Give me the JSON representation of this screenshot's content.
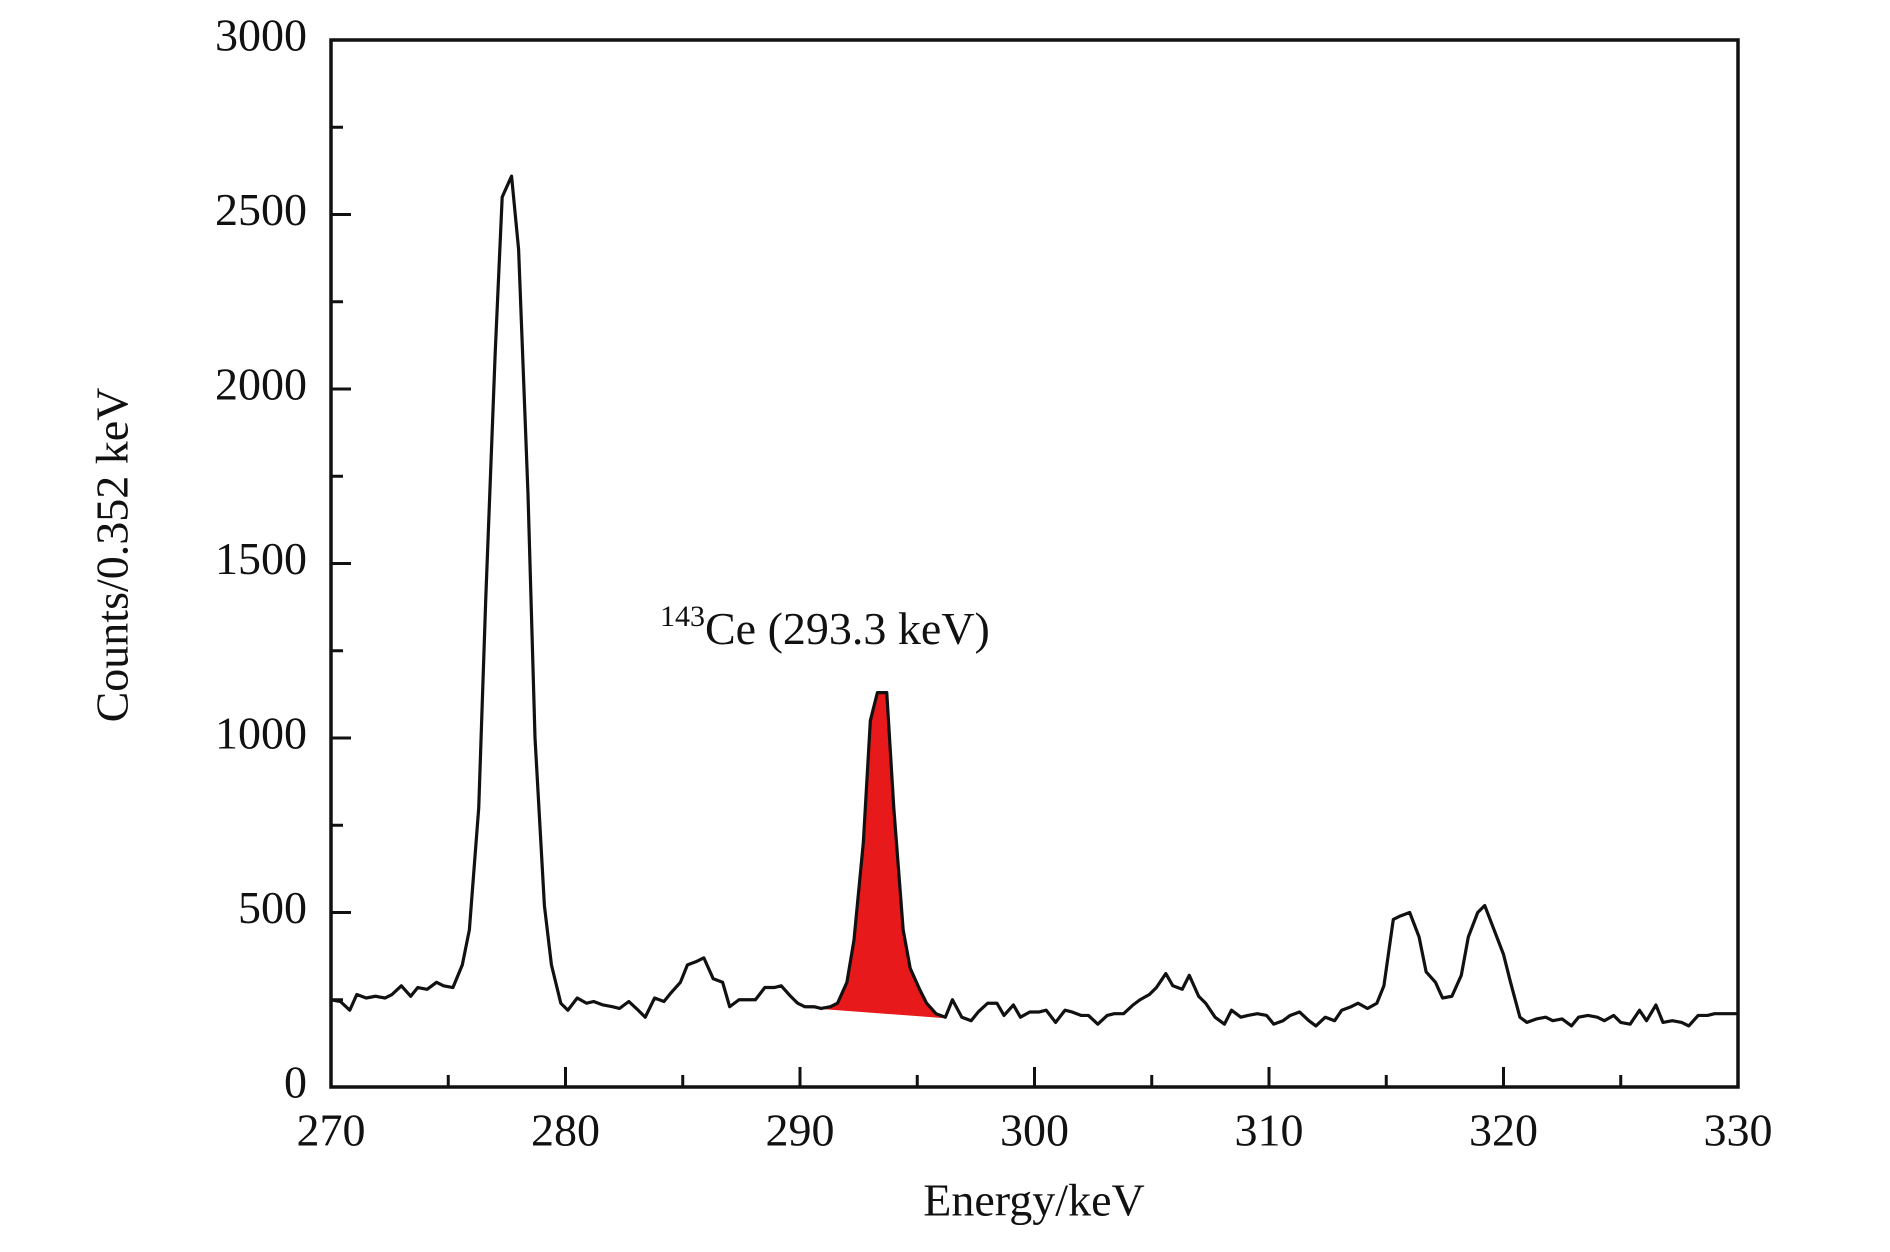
{
  "chart_data": {
    "type": "line",
    "x_label": "Energy/keV",
    "y_label": "Counts/0.352 keV",
    "annotation": {
      "superscript": "143",
      "text": "Ce (293.3 keV)"
    },
    "highlight": {
      "x_range": [
        290.2,
        296.2
      ],
      "color": "#e8191a"
    },
    "xlim": [
      270,
      330
    ],
    "xticks": [
      270,
      280,
      290,
      300,
      310,
      320,
      330
    ],
    "xminorticks": [
      275,
      285,
      295,
      305,
      315,
      325
    ],
    "ylim": [
      0,
      3000
    ],
    "yticks": [
      0,
      500,
      1000,
      1500,
      2000,
      2500,
      3000
    ],
    "yminorticks": [
      250,
      750,
      1250,
      1750,
      2250,
      2750
    ],
    "x": [
      270.0,
      270.4,
      270.8,
      271.1,
      271.5,
      271.9,
      272.3,
      272.6,
      273.0,
      273.4,
      273.7,
      274.1,
      274.5,
      274.8,
      275.2,
      275.6,
      275.9,
      276.3,
      276.6,
      277.0,
      277.3,
      277.7,
      278.0,
      278.4,
      278.7,
      279.1,
      279.4,
      279.8,
      280.1,
      280.5,
      280.9,
      281.2,
      281.6,
      282.0,
      282.3,
      282.7,
      283.1,
      283.4,
      283.8,
      284.2,
      284.5,
      284.9,
      285.2,
      285.6,
      285.9,
      286.3,
      286.7,
      287.0,
      287.4,
      287.8,
      288.1,
      288.5,
      288.9,
      289.2,
      289.6,
      289.9,
      290.2,
      290.6,
      290.9,
      291.3,
      291.6,
      292.0,
      292.3,
      292.7,
      293.0,
      293.3,
      293.7,
      294.0,
      294.4,
      294.7,
      295.1,
      295.4,
      295.8,
      296.2,
      296.5,
      296.9,
      297.3,
      297.6,
      298.0,
      298.4,
      298.7,
      299.1,
      299.4,
      299.8,
      300.2,
      300.5,
      300.9,
      301.3,
      301.6,
      302.0,
      302.3,
      302.7,
      303.1,
      303.4,
      303.8,
      304.2,
      304.5,
      304.9,
      305.2,
      305.6,
      305.9,
      306.3,
      306.6,
      307.0,
      307.3,
      307.7,
      308.1,
      308.4,
      308.8,
      309.1,
      309.5,
      309.9,
      310.2,
      310.6,
      310.9,
      311.3,
      311.7,
      312.0,
      312.4,
      312.8,
      313.1,
      313.5,
      313.8,
      314.2,
      314.6,
      314.9,
      315.3,
      315.6,
      316.0,
      316.4,
      316.7,
      317.1,
      317.4,
      317.8,
      318.2,
      318.5,
      318.9,
      319.2,
      319.6,
      320.0,
      320.3,
      320.7,
      321.0,
      321.4,
      321.8,
      322.1,
      322.5,
      322.9,
      323.2,
      323.6,
      324.0,
      324.3,
      324.7,
      325.0,
      325.4,
      325.8,
      326.1,
      326.5,
      326.8,
      327.2,
      327.6,
      327.9,
      328.3,
      328.7,
      329.0,
      329.4,
      329.8,
      330.0
    ],
    "series": [
      {
        "color": "#111111",
        "values": [
          250,
          245,
          220,
          265,
          255,
          260,
          255,
          265,
          290,
          260,
          285,
          280,
          300,
          290,
          285,
          350,
          450,
          800,
          1400,
          2100,
          2550,
          2610,
          2400,
          1700,
          1000,
          520,
          350,
          240,
          220,
          255,
          240,
          245,
          235,
          230,
          225,
          245,
          220,
          200,
          255,
          245,
          270,
          300,
          350,
          360,
          370,
          310,
          300,
          230,
          250,
          250,
          250,
          285,
          285,
          290,
          260,
          240,
          230,
          230,
          225,
          230,
          240,
          300,
          420,
          700,
          1050,
          1130,
          1130,
          800,
          450,
          340,
          280,
          240,
          210,
          200,
          250,
          200,
          190,
          215,
          240,
          240,
          205,
          235,
          200,
          215,
          215,
          220,
          185,
          220,
          215,
          205,
          205,
          180,
          205,
          210,
          210,
          235,
          250,
          265,
          285,
          325,
          290,
          280,
          320,
          260,
          240,
          200,
          180,
          220,
          200,
          205,
          210,
          205,
          180,
          190,
          205,
          215,
          190,
          175,
          200,
          190,
          220,
          230,
          240,
          225,
          240,
          290,
          480,
          490,
          500,
          430,
          330,
          300,
          255,
          260,
          320,
          430,
          500,
          520,
          450,
          380,
          300,
          200,
          185,
          195,
          200,
          190,
          195,
          175,
          200,
          205,
          200,
          190,
          205,
          185,
          180,
          220,
          190,
          235,
          185,
          190,
          185,
          175,
          205,
          205,
          210,
          210,
          210,
          210
        ]
      }
    ]
  }
}
